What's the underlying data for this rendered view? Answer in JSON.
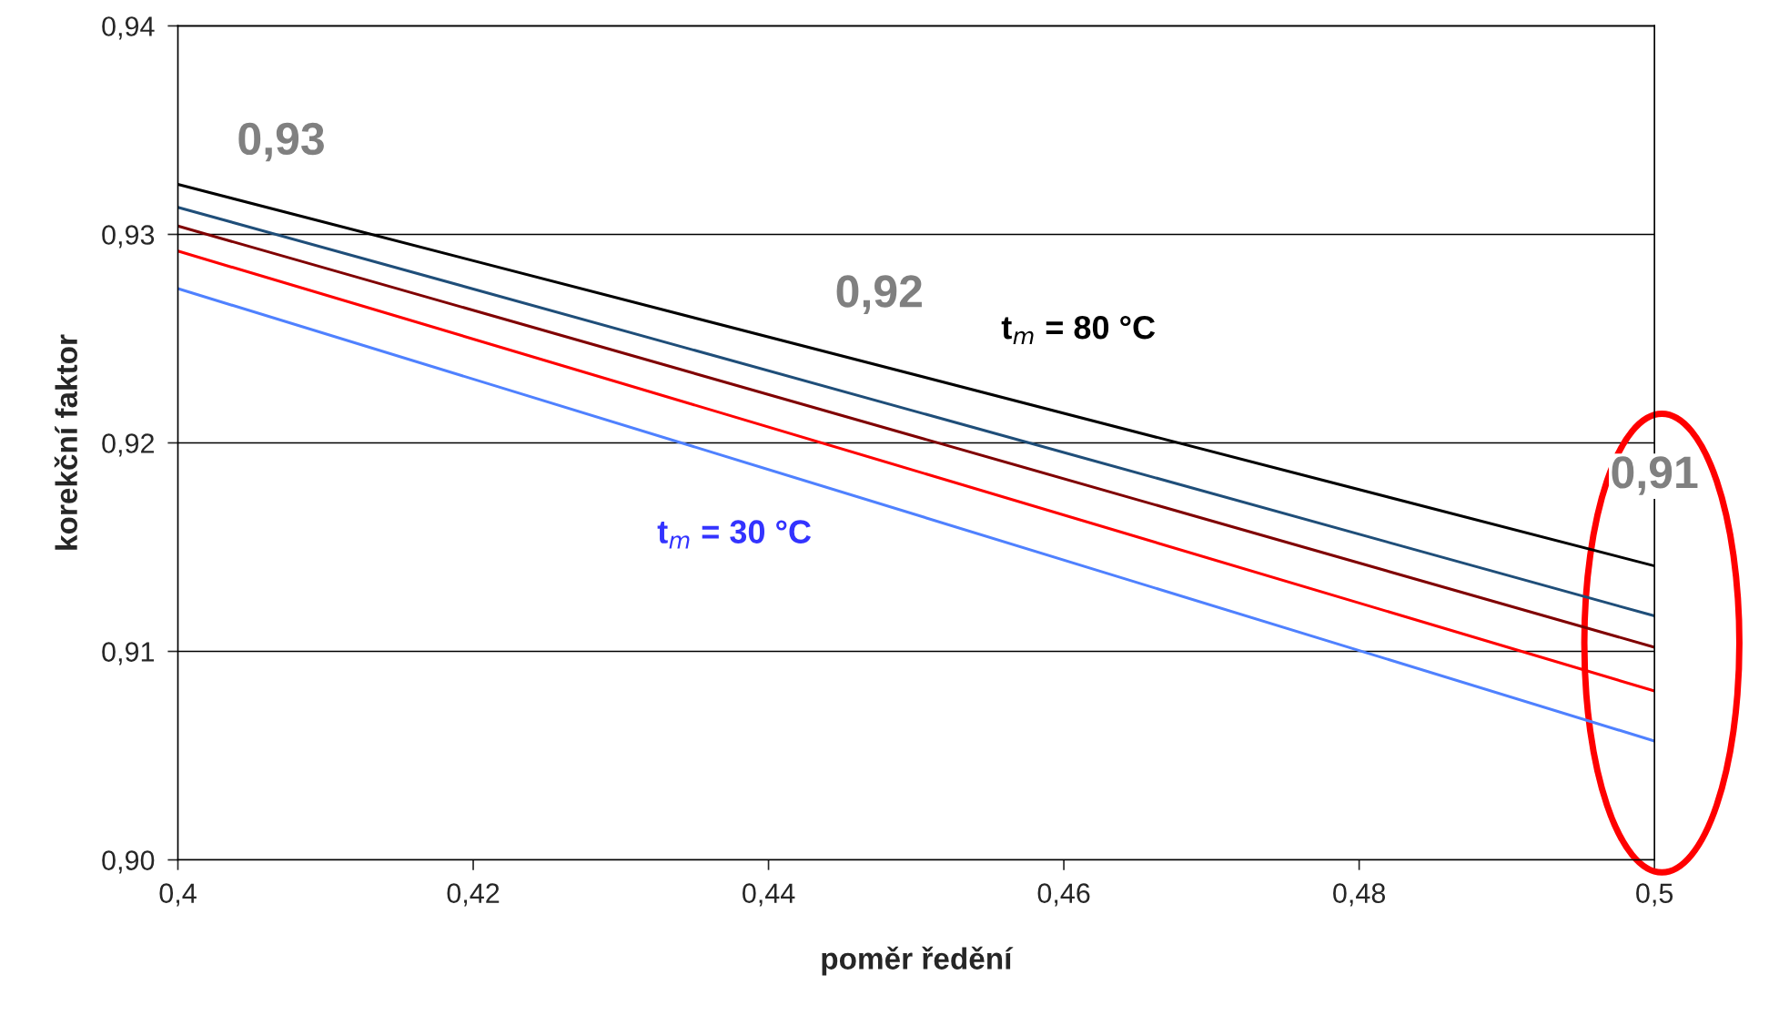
{
  "chart_data": {
    "type": "line",
    "xlabel": "poměr ředění",
    "ylabel": "korekční faktor",
    "x": [
      0.4,
      0.5
    ],
    "series": [
      {
        "color": "#000000",
        "values": [
          0.9324,
          0.9141
        ]
      },
      {
        "color": "#1f4e79",
        "values": [
          0.9313,
          0.9117
        ]
      },
      {
        "color": "#800000",
        "values": [
          0.9304,
          0.9102
        ]
      },
      {
        "color": "#ff0000",
        "values": [
          0.9292,
          0.9081
        ]
      },
      {
        "color": "#4f81ff",
        "values": [
          0.9274,
          0.9057
        ]
      }
    ],
    "xlim": [
      0.4,
      0.5
    ],
    "ylim": [
      0.9,
      0.94
    ],
    "xticks": [
      {
        "value": 0.4,
        "label": "0,4"
      },
      {
        "value": 0.42,
        "label": "0,42"
      },
      {
        "value": 0.44,
        "label": "0,44"
      },
      {
        "value": 0.46,
        "label": "0,46"
      },
      {
        "value": 0.48,
        "label": "0,48"
      },
      {
        "value": 0.5,
        "label": "0,5"
      }
    ],
    "yticks": [
      {
        "value": 0.9,
        "label": "0,90"
      },
      {
        "value": 0.91,
        "label": "0,91"
      },
      {
        "value": 0.92,
        "label": "0,92"
      },
      {
        "value": 0.93,
        "label": "0,93"
      },
      {
        "value": 0.94,
        "label": "0,94"
      }
    ],
    "grid": "y",
    "marker": "none",
    "line_style": "solid",
    "annotations": [
      "0,93",
      "0,92",
      "0,91",
      "t$_{m}$ = 80 °C",
      "t$_{m}$ = 30 °C"
    ]
  }
}
